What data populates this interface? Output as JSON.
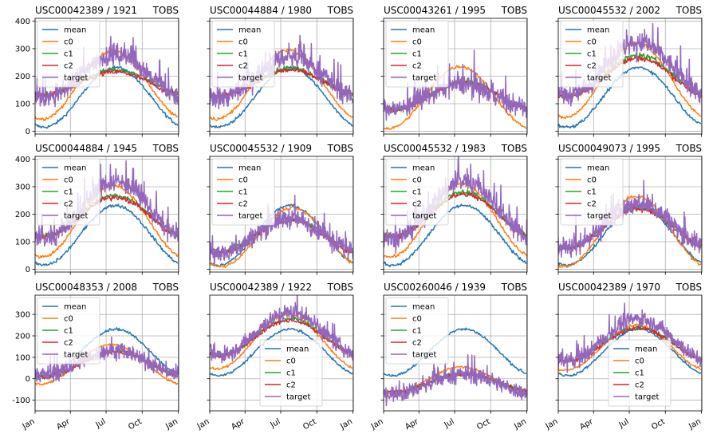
{
  "figure": {
    "background": "#ffffff"
  },
  "x_axis": {
    "range": [
      0,
      366
    ],
    "ticks": [
      {
        "label": "Jan",
        "value": 0
      },
      {
        "label": "Apr",
        "value": 90
      },
      {
        "label": "Jul",
        "value": 181
      },
      {
        "label": "Oct",
        "value": 273
      },
      {
        "label": "Jan",
        "value": 365
      }
    ]
  },
  "row_y_axes": [
    {
      "range": [
        -10,
        410
      ],
      "ticks": [
        0,
        100,
        200,
        300,
        400
      ]
    },
    {
      "range": [
        -10,
        410
      ],
      "ticks": [
        0,
        100,
        200,
        300,
        400
      ]
    },
    {
      "range": [
        -150,
        390
      ],
      "ticks": [
        -100,
        0,
        100,
        200,
        300
      ]
    }
  ],
  "series_styles": [
    {
      "name": "mean",
      "color": "#1f77b4"
    },
    {
      "name": "c0",
      "color": "#ff7f0e"
    },
    {
      "name": "c1",
      "color": "#2ca02c"
    },
    {
      "name": "c2",
      "color": "#d62728"
    },
    {
      "name": "target",
      "color": "#9467bd"
    }
  ],
  "chart_data": [
    {
      "type": "line",
      "title": "USC00042389 / 1921",
      "title_right": "TOBS",
      "legend": "upper-left",
      "series_params": {
        "mean": [
          15,
          232,
          205
        ],
        "c0": [
          45,
          292,
          200
        ],
        "c1": [
          135,
          222,
          205
        ],
        "c2": [
          132,
          215,
          205
        ],
        "target": [
          120,
          280,
          205
        ]
      }
    },
    {
      "type": "line",
      "title": "USC00044884 / 1980",
      "title_right": "TOBS",
      "legend": "upper-left",
      "series_params": {
        "mean": [
          15,
          232,
          205
        ],
        "c0": [
          45,
          295,
          200
        ],
        "c1": [
          130,
          228,
          205
        ],
        "c2": [
          128,
          222,
          205
        ],
        "target": [
          120,
          270,
          205
        ]
      }
    },
    {
      "type": "line",
      "title": "USC00043261 / 1995",
      "title_right": "TOBS",
      "legend": "upper-left",
      "series_params": {
        "mean": [
          null,
          null,
          205
        ],
        "c0": [
          10,
          235,
          195
        ],
        "c1": [
          80,
          180,
          205
        ],
        "c2": [
          78,
          178,
          205
        ],
        "target": [
          80,
          170,
          200
        ]
      }
    },
    {
      "type": "line",
      "title": "USC00045532 / 2002",
      "title_right": "TOBS",
      "legend": "upper-left",
      "series_params": {
        "mean": [
          15,
          232,
          205
        ],
        "c0": [
          50,
          320,
          200
        ],
        "c1": [
          130,
          275,
          205
        ],
        "c2": [
          125,
          265,
          205
        ],
        "target": [
          130,
          320,
          205
        ]
      }
    },
    {
      "type": "line",
      "title": "USC00044884 / 1945",
      "title_right": "TOBS",
      "legend": "upper-left",
      "series_params": {
        "mean": [
          15,
          232,
          205
        ],
        "c0": [
          45,
          305,
          200
        ],
        "c1": [
          120,
          268,
          205
        ],
        "c2": [
          118,
          262,
          205
        ],
        "target": [
          110,
          320,
          205
        ]
      }
    },
    {
      "type": "line",
      "title": "USC00045532 / 1909",
      "title_right": "TOBS",
      "legend": "upper-left",
      "series_params": {
        "mean": [
          15,
          232,
          205
        ],
        "c0": [
          10,
          222,
          210
        ],
        "c1": [
          65,
          182,
          205
        ],
        "c2": [
          60,
          178,
          205
        ],
        "target": [
          60,
          185,
          205
        ]
      }
    },
    {
      "type": "line",
      "title": "USC00045532 / 1983",
      "title_right": "TOBS",
      "legend": "upper-left",
      "series_params": {
        "mean": [
          15,
          232,
          205
        ],
        "c0": [
          45,
          310,
          200
        ],
        "c1": [
          120,
          280,
          205
        ],
        "c2": [
          118,
          272,
          205
        ],
        "target": [
          110,
          320,
          205
        ]
      }
    },
    {
      "type": "line",
      "title": "USC00049073 / 1995",
      "title_right": "TOBS",
      "legend": "upper-left",
      "series_params": {
        "mean": [
          15,
          232,
          205
        ],
        "c0": [
          10,
          265,
          200
        ],
        "c1": [
          80,
          225,
          205
        ],
        "c2": [
          78,
          220,
          205
        ],
        "target": [
          80,
          240,
          205
        ]
      }
    },
    {
      "type": "line",
      "title": "USC00048353 / 2008",
      "title_right": "TOBS",
      "legend": "upper-left",
      "series_params": {
        "mean": [
          15,
          232,
          205
        ],
        "c0": [
          -25,
          160,
          195
        ],
        "c1": [
          10,
          130,
          205
        ],
        "c2": [
          8,
          125,
          205
        ],
        "target": [
          20,
          130,
          200
        ]
      }
    },
    {
      "type": "line",
      "title": "USC00042389 / 1922",
      "title_right": "TOBS",
      "legend": "lower-center",
      "series_params": {
        "mean": [
          15,
          232,
          205
        ],
        "c0": [
          45,
          300,
          200
        ],
        "c1": [
          110,
          280,
          205
        ],
        "c2": [
          108,
          272,
          205
        ],
        "target": [
          110,
          310,
          205
        ]
      }
    },
    {
      "type": "line",
      "title": "USC00260046 / 1939",
      "title_right": "TOBS",
      "legend": "upper-left",
      "series_params": {
        "mean": [
          15,
          232,
          205
        ],
        "c0": [
          -70,
          55,
          200
        ],
        "c1": [
          -60,
          25,
          205
        ],
        "c2": [
          -62,
          22,
          205
        ],
        "target": [
          -70,
          20,
          205
        ]
      }
    },
    {
      "type": "line",
      "title": "USC00042389 / 1970",
      "title_right": "TOBS",
      "legend": "lower-center",
      "series_params": {
        "mean": [
          15,
          232,
          205
        ],
        "c0": [
          40,
          250,
          200
        ],
        "c1": [
          85,
          240,
          205
        ],
        "c2": [
          82,
          235,
          205
        ],
        "target": [
          85,
          280,
          205
        ]
      }
    }
  ]
}
